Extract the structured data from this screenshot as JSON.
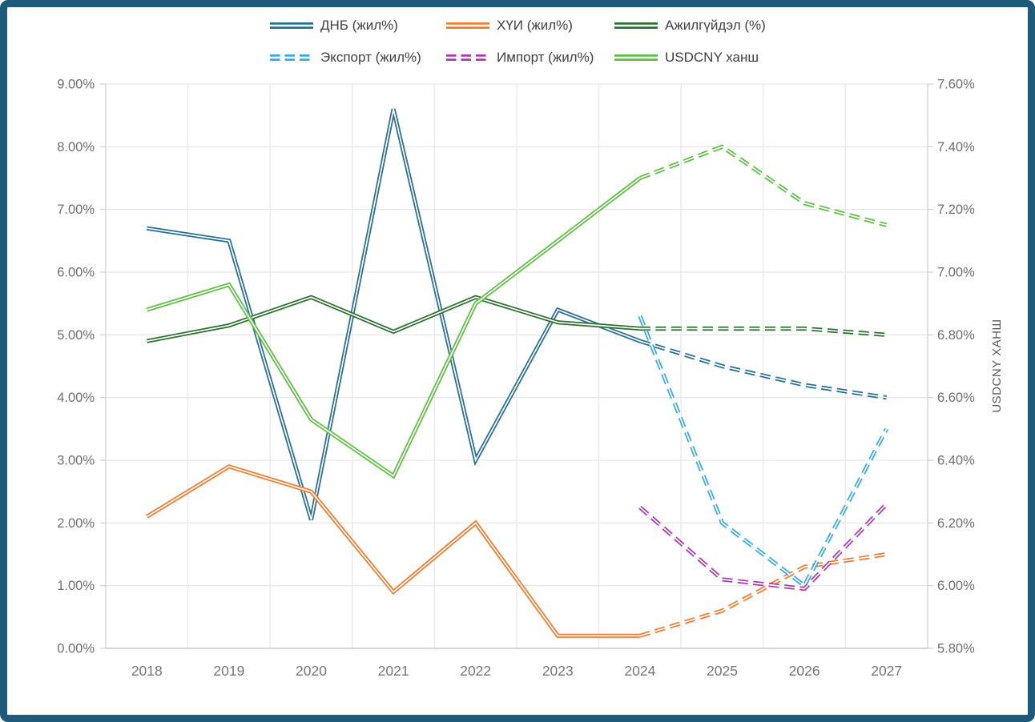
{
  "frame": {
    "border_color": "#1E5B7A",
    "background": "#FFFFFF"
  },
  "chart_data": {
    "type": "line",
    "categories": [
      "2018",
      "2019",
      "2020",
      "2021",
      "2022",
      "2023",
      "2024",
      "2025",
      "2026",
      "2027"
    ],
    "left_axis": {
      "min": 0,
      "max": 9,
      "tick_labels": [
        "0.00%",
        "1.00%",
        "2.00%",
        "3.00%",
        "4.00%",
        "5.00%",
        "6.00%",
        "7.00%",
        "8.00%",
        "9.00%"
      ]
    },
    "right_axis": {
      "min": 5.8,
      "max": 7.6,
      "title": "USDCNY ХАНШ",
      "tick_labels": [
        "5.80%",
        "6.00%",
        "6.20%",
        "6.40%",
        "6.60%",
        "6.80%",
        "7.00%",
        "7.20%",
        "7.40%",
        "7.60%"
      ]
    },
    "grid": true,
    "legend_position": "top",
    "forecast_start_category": "2024",
    "series": [
      {
        "name": "ДНБ (жил%)",
        "color": "#276F91",
        "axis": "left",
        "values": [
          6.7,
          6.5,
          2.05,
          8.6,
          3.0,
          5.4,
          4.9,
          4.5,
          4.2,
          4.0
        ],
        "segments": [
          {
            "from": 0,
            "to": 6,
            "dashed": false
          },
          {
            "from": 6,
            "to": 9,
            "dashed": true
          }
        ]
      },
      {
        "name": "ХҮИ (жил%)",
        "color": "#EE7D31",
        "axis": "left",
        "values": [
          2.1,
          2.9,
          2.5,
          0.9,
          2.0,
          0.2,
          0.2,
          0.6,
          1.3,
          1.5
        ],
        "segments": [
          {
            "from": 0,
            "to": 6,
            "dashed": false
          },
          {
            "from": 6,
            "to": 9,
            "dashed": true
          }
        ]
      },
      {
        "name": "Ажилгүйдэл (%)",
        "color": "#2F7032",
        "axis": "left",
        "values": [
          4.9,
          5.15,
          5.6,
          5.05,
          5.6,
          5.2,
          5.1,
          5.1,
          5.1,
          5.0
        ],
        "segments": [
          {
            "from": 0,
            "to": 6,
            "dashed": false
          },
          {
            "from": 6,
            "to": 9,
            "dashed": true
          }
        ]
      },
      {
        "name": "Экспорт (жил%)",
        "color": "#38ACDE",
        "axis": "left",
        "values": [
          null,
          null,
          null,
          null,
          null,
          null,
          5.3,
          2.0,
          1.0,
          3.5
        ],
        "segments": [
          {
            "from": 6,
            "to": 9,
            "dashed": true
          }
        ]
      },
      {
        "name": "Импорт (жил%)",
        "color": "#A93BAD",
        "axis": "left",
        "values": [
          null,
          null,
          null,
          null,
          null,
          null,
          2.25,
          1.1,
          0.95,
          2.3
        ],
        "segments": [
          {
            "from": 6,
            "to": 9,
            "dashed": true
          }
        ]
      },
      {
        "name": "USDCNY ханш",
        "color": "#5FBE44",
        "axis": "right",
        "values": [
          6.88,
          6.96,
          6.53,
          6.35,
          6.9,
          7.1,
          7.3,
          7.4,
          7.22,
          7.15
        ],
        "segments": [
          {
            "from": 0,
            "to": 6,
            "dashed": false
          },
          {
            "from": 6,
            "to": 9,
            "dashed": true
          }
        ]
      }
    ]
  }
}
